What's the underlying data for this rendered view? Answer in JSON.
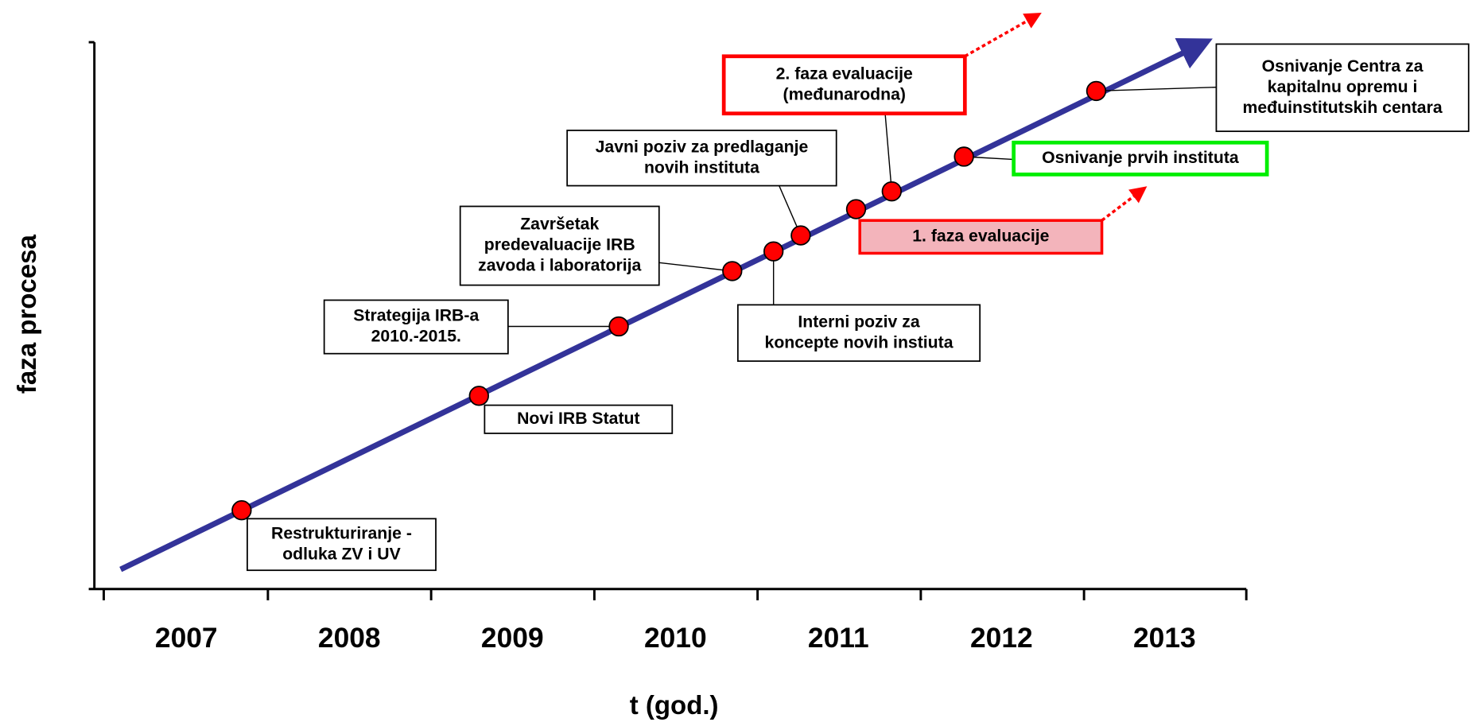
{
  "y_axis_label": "faza procesa",
  "x_axis_label": "t (god.)",
  "years": [
    "2007",
    "2008",
    "2009",
    "2010",
    "2011",
    "2012",
    "2013"
  ],
  "events": [
    {
      "lines": [
        "Restrukturiranje -",
        "odluka ZV i UV"
      ]
    },
    {
      "lines": [
        "Novi IRB Statut"
      ]
    },
    {
      "lines": [
        "Strategija IRB-a",
        "2010.-2015."
      ]
    },
    {
      "lines": [
        "Završetak",
        "predevaluacije IRB",
        "zavoda i laboratorija"
      ]
    },
    {
      "lines": [
        "Interni poziv za",
        "koncepte novih instiuta"
      ]
    },
    {
      "lines": [
        "Javni poziv za predlaganje",
        "novih instituta"
      ]
    },
    {
      "lines": [
        "1. faza evaluacije"
      ]
    },
    {
      "lines": [
        "2. faza evaluacije",
        "(međunarodna)"
      ]
    },
    {
      "lines": [
        "Osnivanje prvih instituta"
      ]
    },
    {
      "lines": [
        "Osnivanje Centra za",
        "kapitalnu opremu i",
        "međuinstitutskih centara"
      ]
    }
  ]
}
